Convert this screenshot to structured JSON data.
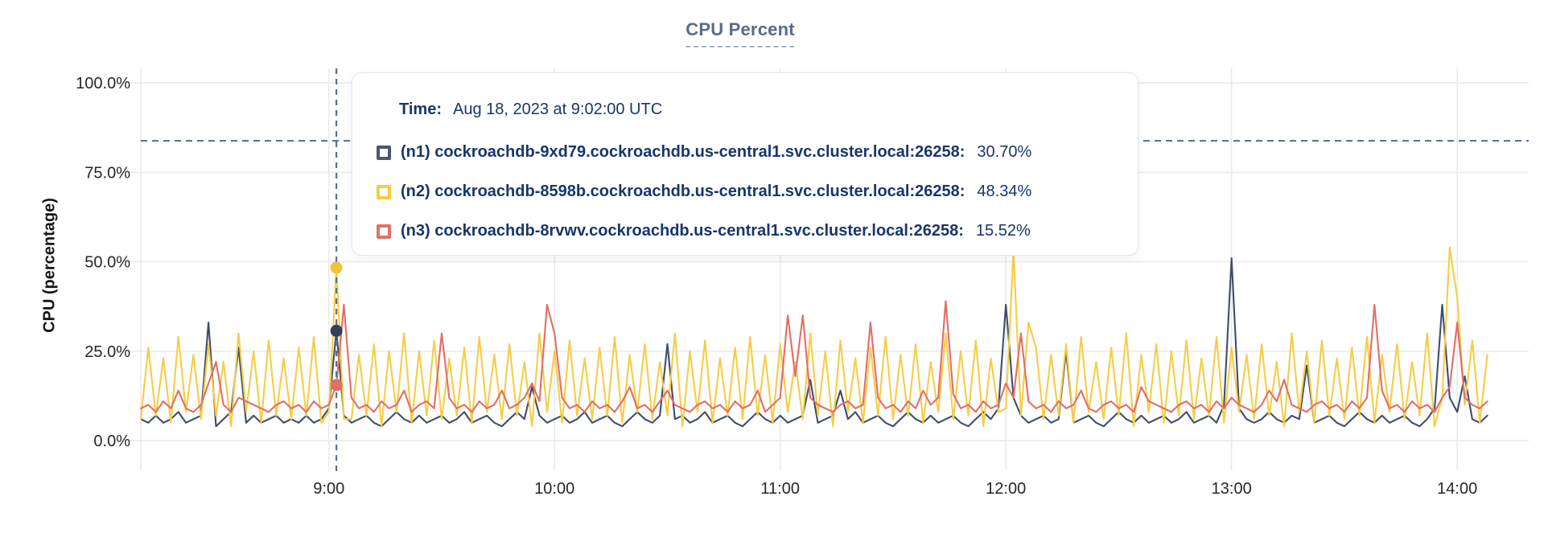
{
  "tooltip": {
    "time_label": "Time:",
    "time_value": "Aug 18, 2023 at 9:02:00 UTC",
    "rows": [
      {
        "name": "(n1) cockroachdb-9xd79.cockroachdb.us-central1.svc.cluster.local:26258:",
        "value": "30.70%"
      },
      {
        "name": "(n2) cockroachdb-8598b.cockroachdb.us-central1.svc.cluster.local:26258:",
        "value": "48.34%"
      },
      {
        "name": "(n3) cockroachdb-8rvwv.cockroachdb.us-central1.svc.cluster.local:26258:",
        "value": "15.52%"
      }
    ]
  },
  "colors": {
    "grid": "#e9e9e9",
    "tick_text": "#262626",
    "title": "#5a6b88",
    "tooltip_text": "#17366b",
    "crosshair": "#5d7189",
    "threshold": "#3f5f80"
  },
  "chart_data": {
    "type": "line",
    "title": "CPU Percent",
    "xlabel": "",
    "ylabel": "CPU (percentage)",
    "x_unit": "minutes_of_day",
    "x_start": 490,
    "x_step": 2,
    "xlim": [
      490,
      859
    ],
    "ylim": [
      0,
      100
    ],
    "grid": true,
    "legend_position": "hover-tooltip",
    "yticks": [
      {
        "value": 0,
        "label": "0.0%"
      },
      {
        "value": 25,
        "label": "25.0%"
      },
      {
        "value": 50,
        "label": "50.0%"
      },
      {
        "value": 75,
        "label": "75.0%"
      },
      {
        "value": 100,
        "label": "100.0%"
      }
    ],
    "xticks": [
      {
        "minute": 540,
        "label": "9:00"
      },
      {
        "minute": 600,
        "label": "10:00"
      },
      {
        "minute": 660,
        "label": "11:00"
      },
      {
        "minute": 720,
        "label": "12:00"
      },
      {
        "minute": 780,
        "label": "13:00"
      },
      {
        "minute": 840,
        "label": "14:00"
      }
    ],
    "threshold_line": {
      "value": 83.8,
      "style": "dashed"
    },
    "crosshair": {
      "minute": 542,
      "time": "Aug 18, 2023 at 9:02:00 UTC"
    },
    "series": [
      {
        "name": "(n1) cockroachdb-9xd79.cockroachdb.us-central1.svc.cluster.local:26258",
        "color": "#3f4d6b",
        "marker_color": "#475872",
        "dot_color": "#33405a",
        "hover_value": 30.7,
        "values": [
          6,
          5,
          7,
          5,
          6,
          8,
          5,
          6,
          7,
          33,
          4,
          6,
          8,
          26,
          5,
          7,
          5,
          6,
          7,
          5,
          6,
          5,
          7,
          5,
          6,
          9,
          30.7,
          7,
          5,
          6,
          7,
          5,
          4,
          6,
          8,
          6,
          5,
          7,
          5,
          6,
          7,
          5,
          6,
          8,
          5,
          6,
          7,
          5,
          4,
          6,
          8,
          6,
          15,
          7,
          5,
          6,
          7,
          5,
          6,
          8,
          5,
          6,
          7,
          5,
          4,
          6,
          8,
          6,
          5,
          7,
          27,
          6,
          7,
          5,
          6,
          8,
          5,
          6,
          7,
          5,
          4,
          6,
          8,
          6,
          5,
          7,
          5,
          6,
          7,
          17,
          5,
          6,
          7,
          14,
          6,
          8,
          5,
          6,
          7,
          5,
          4,
          6,
          8,
          6,
          5,
          7,
          5,
          6,
          7,
          5,
          4,
          6,
          8,
          6,
          9,
          38,
          12,
          7,
          5,
          6,
          7,
          5,
          6,
          25,
          5,
          6,
          7,
          5,
          4,
          6,
          8,
          6,
          5,
          7,
          5,
          6,
          7,
          5,
          6,
          8,
          5,
          6,
          7,
          5,
          10,
          51,
          9,
          6,
          5,
          6,
          8,
          6,
          5,
          7,
          6,
          21,
          5,
          6,
          7,
          5,
          4,
          6,
          8,
          6,
          5,
          7,
          5,
          6,
          7,
          5,
          4,
          6,
          9,
          38,
          12,
          8,
          18,
          6,
          5,
          7
        ]
      },
      {
        "name": "(n2) cockroachdb-8598b.cockroachdb.us-central1.svc.cluster.local:26258",
        "color": "#f6cd45",
        "marker_color": "#f5cd44",
        "dot_color": "#f0c53b",
        "hover_value": 48.34,
        "values": [
          6,
          26,
          7,
          23,
          5,
          29,
          8,
          24,
          6,
          27,
          7,
          22,
          4,
          30,
          8,
          25,
          5,
          28,
          7,
          23,
          6,
          26,
          7,
          29,
          5,
          8,
          48.34,
          6,
          6,
          24,
          7,
          27,
          4,
          25,
          8,
          30,
          5,
          25,
          7,
          28,
          6,
          23,
          7,
          26,
          5,
          29,
          8,
          24,
          6,
          27,
          7,
          22,
          4,
          30,
          8,
          25,
          5,
          28,
          7,
          23,
          6,
          26,
          7,
          29,
          5,
          24,
          8,
          27,
          6,
          22,
          7,
          30,
          4,
          25,
          8,
          28,
          5,
          23,
          7,
          26,
          6,
          29,
          7,
          24,
          5,
          27,
          8,
          22,
          6,
          30,
          7,
          25,
          4,
          28,
          8,
          23,
          5,
          26,
          7,
          29,
          6,
          24,
          7,
          27,
          5,
          22,
          8,
          30,
          6,
          25,
          7,
          28,
          4,
          23,
          8,
          9,
          53,
          7,
          33,
          26,
          6,
          24,
          7,
          27,
          5,
          29,
          8,
          22,
          6,
          26,
          7,
          30,
          4,
          24,
          8,
          27,
          5,
          25,
          7,
          28,
          6,
          23,
          7,
          29,
          5,
          26,
          8,
          24,
          6,
          27,
          7,
          22,
          4,
          30,
          8,
          25,
          5,
          28,
          7,
          23,
          6,
          26,
          7,
          29,
          5,
          24,
          8,
          27,
          6,
          22,
          7,
          30,
          4,
          12,
          54,
          40,
          10,
          28,
          5,
          24
        ]
      },
      {
        "name": "(n3) cockroachdb-8rvwv.cockroachdb.us-central1.svc.cluster.local:26258",
        "color": "#e26e67",
        "marker_color": "#e0706b",
        "dot_color": "#df6f68",
        "hover_value": 15.52,
        "values": [
          9,
          10,
          8,
          11,
          9,
          14,
          9,
          8,
          10,
          16,
          22,
          10,
          8,
          12,
          11,
          10,
          9,
          8,
          10,
          11,
          9,
          10,
          8,
          11,
          9,
          10,
          15.52,
          38,
          12,
          9,
          10,
          8,
          11,
          9,
          10,
          14,
          8,
          10,
          11,
          9,
          30,
          12,
          9,
          10,
          8,
          11,
          9,
          10,
          14,
          9,
          10,
          12,
          16,
          11,
          38,
          30,
          12,
          9,
          10,
          8,
          11,
          9,
          10,
          8,
          11,
          15,
          9,
          10,
          8,
          11,
          14,
          10,
          9,
          8,
          10,
          11,
          9,
          10,
          8,
          11,
          9,
          10,
          14,
          8,
          10,
          12,
          35,
          18,
          35,
          12,
          10,
          9,
          8,
          10,
          11,
          9,
          10,
          33,
          12,
          9,
          10,
          8,
          11,
          9,
          14,
          10,
          12,
          39,
          13,
          9,
          10,
          8,
          11,
          9,
          10,
          16,
          12,
          30,
          11,
          9,
          10,
          8,
          11,
          9,
          10,
          14,
          9,
          8,
          10,
          11,
          9,
          10,
          8,
          15,
          11,
          10,
          9,
          8,
          10,
          11,
          9,
          10,
          8,
          11,
          9,
          12,
          10,
          9,
          8,
          10,
          14,
          11,
          17,
          10,
          9,
          8,
          10,
          11,
          9,
          10,
          8,
          11,
          9,
          12,
          38,
          14,
          9,
          10,
          8,
          11,
          9,
          10,
          8,
          12,
          15,
          33,
          12,
          10,
          9,
          11
        ]
      }
    ]
  }
}
